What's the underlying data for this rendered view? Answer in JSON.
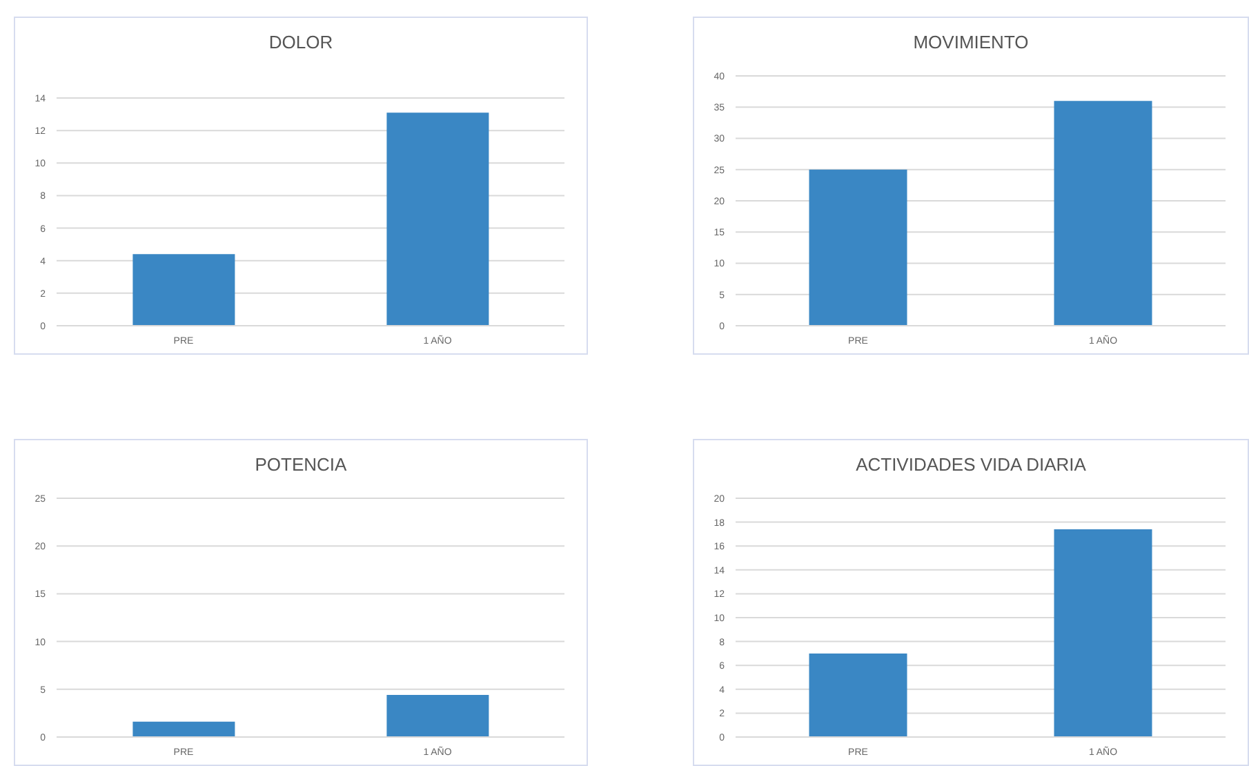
{
  "chart_data": [
    {
      "type": "bar",
      "title": "DOLOR",
      "categories": [
        "PRE",
        "1 AÑO"
      ],
      "values": [
        4.4,
        13.1
      ],
      "color": "#3a87c4",
      "ylim": [
        0,
        14
      ],
      "yticks": [
        0,
        2,
        4,
        6,
        8,
        10,
        12,
        14
      ],
      "grid": "y",
      "legend": false
    },
    {
      "type": "bar",
      "title": "MOVIMIENTO",
      "categories": [
        "PRE",
        "1 AÑO"
      ],
      "values": [
        25,
        36
      ],
      "color": "#3a87c4",
      "ylim": [
        0,
        40
      ],
      "yticks": [
        0,
        5,
        10,
        15,
        20,
        25,
        30,
        35,
        40
      ],
      "grid": "y",
      "legend": false
    },
    {
      "type": "bar",
      "title": "POTENCIA",
      "categories": [
        "PRE",
        "1 AÑO"
      ],
      "values": [
        1.6,
        4.4
      ],
      "color": "#3a87c4",
      "ylim": [
        0,
        25
      ],
      "yticks": [
        0,
        5,
        10,
        15,
        20,
        25
      ],
      "grid": "y",
      "legend": false
    },
    {
      "type": "bar",
      "title": "ACTIVIDADES VIDA DIARIA",
      "categories": [
        "PRE",
        "1 AÑO"
      ],
      "values": [
        7,
        17.4
      ],
      "color": "#3a87c4",
      "ylim": [
        0,
        20
      ],
      "yticks": [
        0,
        2,
        4,
        6,
        8,
        10,
        12,
        14,
        16,
        18,
        20
      ],
      "grid": "y",
      "legend": false
    }
  ]
}
